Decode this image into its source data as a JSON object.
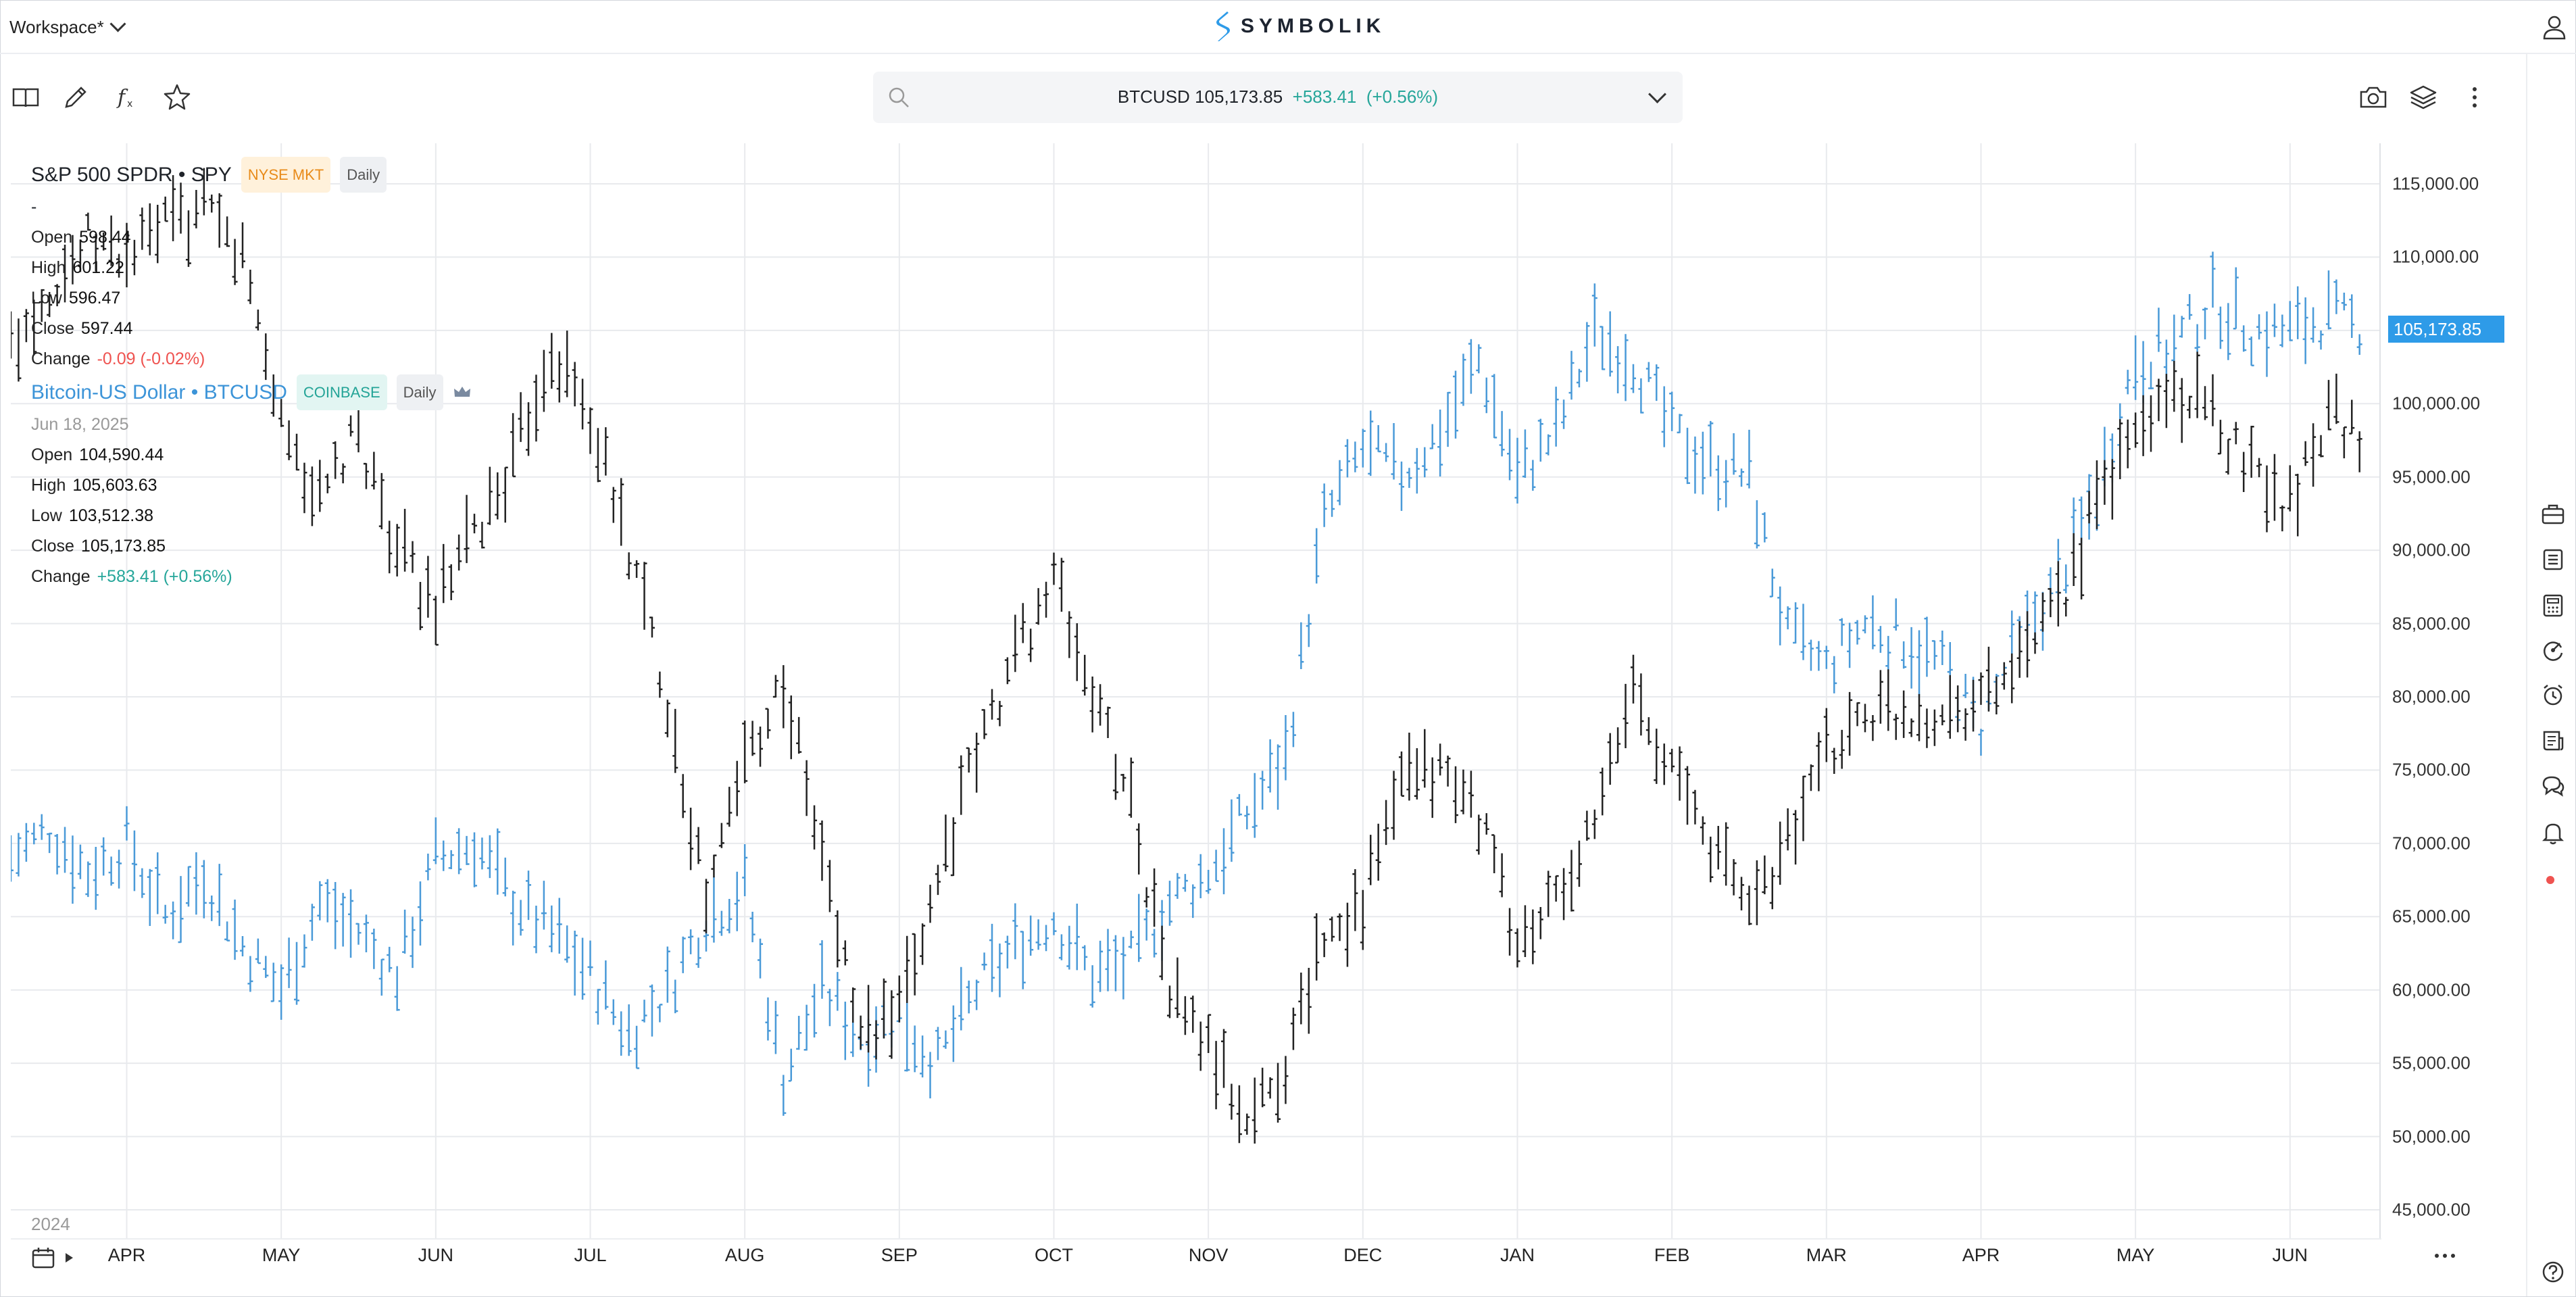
{
  "header": {
    "workspace_label": "Workspace*",
    "brand": "SYMBOLIK"
  },
  "toolbar": {
    "icons": [
      "book-icon",
      "pencil-icon",
      "function-icon",
      "star-icon"
    ],
    "right_icons": [
      "camera-icon",
      "layers-icon",
      "more-vertical-icon"
    ]
  },
  "search": {
    "symbol": "BTCUSD",
    "price": "105,173.85",
    "change": "+583.41",
    "change_pct": "(+0.56%)"
  },
  "legend": {
    "spy": {
      "name": "S&P 500 SPDR • SPY",
      "exchange": "NYSE MKT",
      "interval": "Daily",
      "date": "-",
      "open_label": "Open",
      "open": "598.44",
      "high_label": "High",
      "high": "601.22",
      "low_label": "Low",
      "low": "596.47",
      "close_label": "Close",
      "close": "597.44",
      "change_label": "Change",
      "change": "-0.09 (-0.02%)"
    },
    "btc": {
      "name": "Bitcoin-US Dollar • BTCUSD",
      "exchange": "COINBASE",
      "interval": "Daily",
      "date": "Jun 18, 2025",
      "open_label": "Open",
      "open": "104,590.44",
      "high_label": "High",
      "high": "105,603.63",
      "low_label": "Low",
      "low": "103,512.38",
      "close_label": "Close",
      "close": "105,173.85",
      "change_label": "Change",
      "change": "+583.41 (+0.56%)"
    }
  },
  "chart_data": {
    "type": "line",
    "title": "",
    "year_label": "2024",
    "colors": {
      "btc": "#4a9ad8",
      "spy": "#222222",
      "grid": "#e8eaed",
      "last_price": "#2e9be8"
    },
    "ylim": [
      45000,
      115000
    ],
    "y_ticks": [
      "115,000.00",
      "110,000.00",
      "105,000.00",
      "100,000.00",
      "95,000.00",
      "90,000.00",
      "85,000.00",
      "80,000.00",
      "75,000.00",
      "70,000.00",
      "65,000.00",
      "60,000.00",
      "55,000.00",
      "50,000.00",
      "45,000.00"
    ],
    "last_price_label": "105,173.85",
    "x_ticks": [
      "APR",
      "MAY",
      "JUN",
      "JUL",
      "AUG",
      "SEP",
      "OCT",
      "NOV",
      "DEC",
      "JAN",
      "FEB",
      "MAR",
      "APR",
      "MAY",
      "JUN"
    ],
    "x_tick_times": [
      0.0,
      1.0,
      2.0,
      3.0,
      4.0,
      5.0,
      6.0,
      7.0,
      8.0,
      9.0,
      10.0,
      11.0,
      12.0,
      13.0,
      14.0
    ],
    "x_range": [
      -0.75,
      14.6
    ],
    "series": [
      {
        "name": "Bitcoin-US Dollar • BTCUSD",
        "key": "btc",
        "x": [
          -0.75,
          -0.5,
          -0.25,
          0,
          0.25,
          0.5,
          0.75,
          1,
          1.25,
          1.5,
          1.75,
          2,
          2.25,
          2.5,
          2.75,
          3,
          3.25,
          3.5,
          3.75,
          4,
          4.25,
          4.5,
          4.75,
          5,
          5.25,
          5.5,
          5.75,
          6,
          6.25,
          6.5,
          6.75,
          7,
          7.25,
          7.5,
          7.75,
          8,
          8.25,
          8.5,
          8.75,
          9,
          9.25,
          9.5,
          9.75,
          10,
          10.25,
          10.5,
          10.75,
          11,
          11.25,
          11.5,
          11.75,
          12,
          12.25,
          12.5,
          12.75,
          13,
          13.25,
          13.5,
          13.75,
          14,
          14.25,
          14.5
        ],
        "values": [
          69000,
          71000,
          68000,
          70000,
          65000,
          68000,
          63000,
          60000,
          66000,
          64000,
          61000,
          69000,
          70000,
          66000,
          64000,
          61000,
          57000,
          60000,
          65000,
          67000,
          54000,
          60000,
          57000,
          58000,
          55000,
          60000,
          63000,
          65000,
          61000,
          62000,
          66000,
          68000,
          72000,
          76000,
          92000,
          97000,
          95000,
          98000,
          103000,
          95000,
          98000,
          105000,
          103000,
          98000,
          96000,
          95000,
          84000,
          82000,
          85000,
          84000,
          82000,
          78000,
          84000,
          88000,
          94000,
          103000,
          104000,
          107000,
          105000,
          105000,
          106000,
          105174
        ]
      },
      {
        "name": "S&P 500 SPDR • SPY",
        "key": "spy",
        "x": [
          -0.75,
          -0.5,
          -0.25,
          0,
          0.25,
          0.5,
          0.75,
          1,
          1.25,
          1.5,
          1.75,
          2,
          2.25,
          2.5,
          2.75,
          3,
          3.25,
          3.5,
          3.75,
          4,
          4.25,
          4.5,
          4.75,
          5,
          5.25,
          5.5,
          5.75,
          6,
          6.25,
          6.5,
          6.75,
          7,
          7.25,
          7.5,
          7.75,
          8,
          8.25,
          8.5,
          8.75,
          9,
          9.25,
          9.5,
          9.75,
          10,
          10.25,
          10.5,
          10.75,
          11,
          11.25,
          11.5,
          11.75,
          12,
          12.25,
          12.5,
          12.75,
          13,
          13.25,
          13.5,
          13.75,
          14,
          14.25,
          14.5
        ],
        "values": [
          104000,
          108000,
          111000,
          110000,
          112000,
          113000,
          110000,
          99000,
          93000,
          98000,
          90000,
          86000,
          91000,
          96000,
          104000,
          99000,
          90000,
          80000,
          66000,
          76000,
          81000,
          69000,
          57000,
          58000,
          68000,
          76000,
          83000,
          88000,
          80000,
          73000,
          60000,
          56000,
          51000,
          55000,
          64000,
          66000,
          74000,
          75000,
          72000,
          63000,
          66000,
          71000,
          81000,
          75000,
          70000,
          66000,
          70000,
          76000,
          79000,
          79000,
          79000,
          80000,
          82000,
          86000,
          93000,
          98000,
          101000,
          99000,
          96000,
          93000,
          100000,
          97000
        ]
      }
    ]
  },
  "sidebar": {
    "icons": [
      "briefcase-icon",
      "list-icon",
      "calculator-icon",
      "dial-icon",
      "alarm-icon",
      "news-icon",
      "chat-icon",
      "bell-icon",
      "help-icon"
    ]
  },
  "bottom": {
    "more_icon": "more-horizontal-icon",
    "calendar_icon": "calendar-icon"
  }
}
